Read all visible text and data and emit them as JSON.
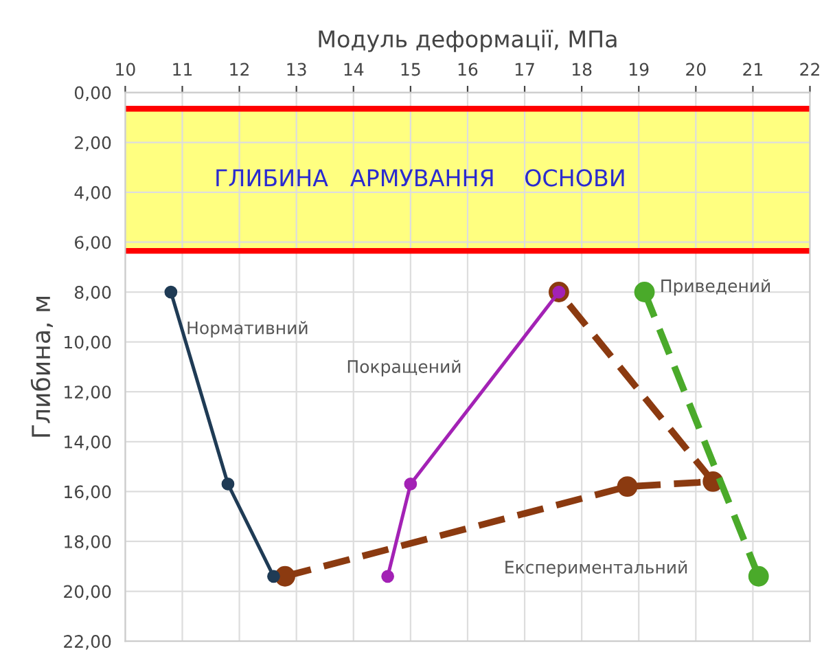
{
  "chart_data": {
    "type": "line",
    "xlabel": "Модуль деформації, МПа",
    "ylabel": "Глибина, м",
    "xlim": [
      10,
      22
    ],
    "xticks": [
      10,
      11,
      12,
      13,
      14,
      15,
      16,
      17,
      18,
      19,
      20,
      21,
      22
    ],
    "ylim": [
      22,
      0
    ],
    "yticks": [
      {
        "value": 0,
        "label": "0,00"
      },
      {
        "value": 2,
        "label": "2,00"
      },
      {
        "value": 4,
        "label": "4,00"
      },
      {
        "value": 6,
        "label": "6,00"
      },
      {
        "value": 8,
        "label": "8,00"
      },
      {
        "value": 10,
        "label": "10,00"
      },
      {
        "value": 12,
        "label": "12,00"
      },
      {
        "value": 14,
        "label": "14,00"
      },
      {
        "value": 16,
        "label": "16,00"
      },
      {
        "value": 18,
        "label": "18,00"
      },
      {
        "value": 20,
        "label": "20,00"
      },
      {
        "value": 22,
        "label": "22,00"
      }
    ],
    "grid": true,
    "marker": "circle",
    "bands": [
      {
        "axis": "y",
        "from": 0.65,
        "to": 6.35,
        "label": "ГЛИБИНА   АРМУВАННЯ    ОСНОВИ",
        "color": "#ffff80"
      }
    ],
    "ref_lines": [
      {
        "axis": "y",
        "value": 0.65,
        "color": "#ff0000"
      },
      {
        "axis": "y",
        "value": 6.35,
        "color": "#ff0000"
      }
    ],
    "series": [
      {
        "name": "Нормативний",
        "color": "#1f3b55",
        "line_style": "solid",
        "x": [
          10.8,
          11.8,
          12.6
        ],
        "values": [
          8,
          15.7,
          19.4
        ]
      },
      {
        "name": "Покращений",
        "color": "#a322b5",
        "line_style": "solid",
        "x": [
          14.6,
          15.0,
          17.6
        ],
        "values": [
          19.4,
          15.7,
          8
        ]
      },
      {
        "name": "Експериментальний",
        "color": "#8b3a10",
        "line_style": "dashed",
        "x": [
          12.8,
          18.8,
          20.3,
          17.6
        ],
        "values": [
          19.4,
          15.8,
          15.6,
          8
        ]
      },
      {
        "name": "Приведений",
        "color": "#4aaa2a",
        "line_style": "dashed",
        "x": [
          19.1,
          21.1
        ],
        "values": [
          8,
          19.4
        ]
      }
    ]
  }
}
